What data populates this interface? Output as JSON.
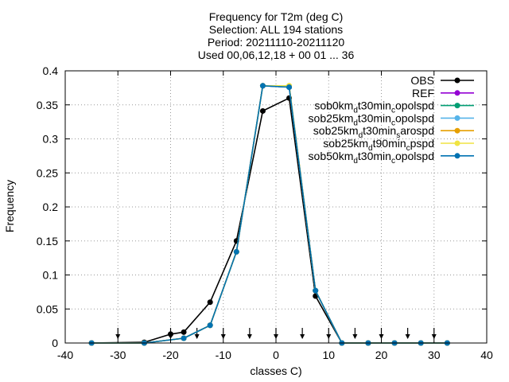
{
  "chart_data": {
    "type": "line",
    "title_lines": [
      "Frequency  for T2m (deg C)",
      "Selection: ALL     194 stations",
      "Period: 20211110-20211120",
      "Used 00,06,12,18 + 00 01 ... 36"
    ],
    "xlabel": "classes C)",
    "ylabel": "Frequency",
    "xlim": [
      -40,
      40
    ],
    "ylim": [
      0,
      0.4
    ],
    "xticks": [
      -40,
      -30,
      -20,
      -10,
      0,
      10,
      20,
      30,
      40
    ],
    "yticks": [
      0,
      0.05,
      0.1,
      0.15,
      0.2,
      0.25,
      0.3,
      0.35,
      0.4
    ],
    "grid": true,
    "legend_position": "top-right",
    "arrow_x": [
      -30,
      -20,
      -15,
      -10,
      -5,
      0,
      5,
      10,
      15,
      20,
      25,
      30
    ],
    "series": [
      {
        "name": "OBS",
        "color": "#000000",
        "marker": "dot",
        "x": [
          -35,
          -25,
          -20,
          -17.5,
          -12.5,
          -7.5,
          -2.5,
          2.5,
          7.5,
          12.5,
          17.5,
          22.5,
          27.5,
          32.5
        ],
        "y": [
          0.0,
          0.001,
          0.013,
          0.016,
          0.06,
          0.15,
          0.341,
          0.36,
          0.069,
          0.0,
          0.0,
          0.0,
          0.0,
          0.0
        ]
      },
      {
        "name": "REF",
        "color": "#9400d3",
        "marker": "dot",
        "x": [
          -35,
          -25,
          -17.5,
          -12.5,
          -7.5,
          -2.5,
          2.5,
          7.5,
          12.5,
          17.5,
          22.5,
          27.5,
          32.5
        ],
        "y": [
          0.0,
          0.0,
          0.007,
          0.026,
          0.134,
          0.378,
          0.376,
          0.077,
          0.0,
          0.0,
          0.0,
          0.0,
          0.0
        ]
      },
      {
        "name_parts": [
          [
            "sob0km",
            ""
          ],
          [
            "d",
            "sub"
          ],
          [
            "t30min",
            ""
          ],
          [
            "c",
            "sub"
          ],
          [
            "opolspd",
            ""
          ]
        ],
        "color": "#009e73",
        "marker": "dot",
        "x": [
          -35,
          -25,
          -17.5,
          -12.5,
          -7.5,
          -2.5,
          2.5,
          7.5,
          12.5,
          17.5,
          22.5,
          27.5,
          32.5
        ],
        "y": [
          0.0,
          0.0,
          0.007,
          0.026,
          0.134,
          0.378,
          0.376,
          0.077,
          0.0,
          0.0,
          0.0,
          0.0,
          0.0
        ]
      },
      {
        "name_parts": [
          [
            "sob25km",
            ""
          ],
          [
            "d",
            "sub"
          ],
          [
            "t30min",
            ""
          ],
          [
            "c",
            "sub"
          ],
          [
            "opolspd",
            ""
          ]
        ],
        "color": "#56b4e9",
        "marker": "dot",
        "x": [
          -35,
          -25,
          -17.5,
          -12.5,
          -7.5,
          -2.5,
          2.5,
          7.5,
          12.5,
          17.5,
          22.5,
          27.5,
          32.5
        ],
        "y": [
          0.0,
          0.0,
          0.007,
          0.026,
          0.134,
          0.378,
          0.376,
          0.077,
          0.0,
          0.0,
          0.0,
          0.0,
          0.0
        ]
      },
      {
        "name_parts": [
          [
            "sob25km",
            ""
          ],
          [
            "d",
            "sub"
          ],
          [
            "t30min",
            ""
          ],
          [
            "s",
            "sub"
          ],
          [
            "arospd",
            ""
          ]
        ],
        "color": "#e69f00",
        "marker": "dot",
        "x": [
          -35,
          -25,
          -17.5,
          -12.5,
          -7.5,
          -2.5,
          2.5,
          7.5,
          12.5,
          17.5,
          22.5,
          27.5,
          32.5
        ],
        "y": [
          0.0,
          0.0,
          0.007,
          0.026,
          0.134,
          0.378,
          0.378,
          0.077,
          0.0,
          0.0,
          0.0,
          0.0,
          0.0
        ]
      },
      {
        "name_parts": [
          [
            "sob25km",
            ""
          ],
          [
            "d",
            "sub"
          ],
          [
            "t90min",
            ""
          ],
          [
            "c",
            "sub"
          ],
          [
            "pspd",
            ""
          ]
        ],
        "color": "#f0e442",
        "marker": "dot",
        "x": [
          -35,
          -25,
          -17.5,
          -12.5,
          -7.5,
          -2.5,
          2.5,
          7.5,
          12.5,
          17.5,
          22.5,
          27.5,
          32.5
        ],
        "y": [
          0.0,
          0.0,
          0.007,
          0.026,
          0.134,
          0.378,
          0.378,
          0.077,
          0.0,
          0.0,
          0.0,
          0.0,
          0.0
        ]
      },
      {
        "name_parts": [
          [
            "sob50km",
            ""
          ],
          [
            "d",
            "sub"
          ],
          [
            "t30min",
            ""
          ],
          [
            "c",
            "sub"
          ],
          [
            "opolspd",
            ""
          ]
        ],
        "color": "#0072b2",
        "marker": "dot",
        "x": [
          -35,
          -25,
          -17.5,
          -12.5,
          -7.5,
          -2.5,
          2.5,
          7.5,
          12.5,
          17.5,
          22.5,
          27.5,
          32.5
        ],
        "y": [
          0.0,
          0.0,
          0.007,
          0.026,
          0.134,
          0.378,
          0.376,
          0.077,
          0.0,
          0.0,
          0.0,
          0.0,
          0.0
        ]
      }
    ]
  }
}
